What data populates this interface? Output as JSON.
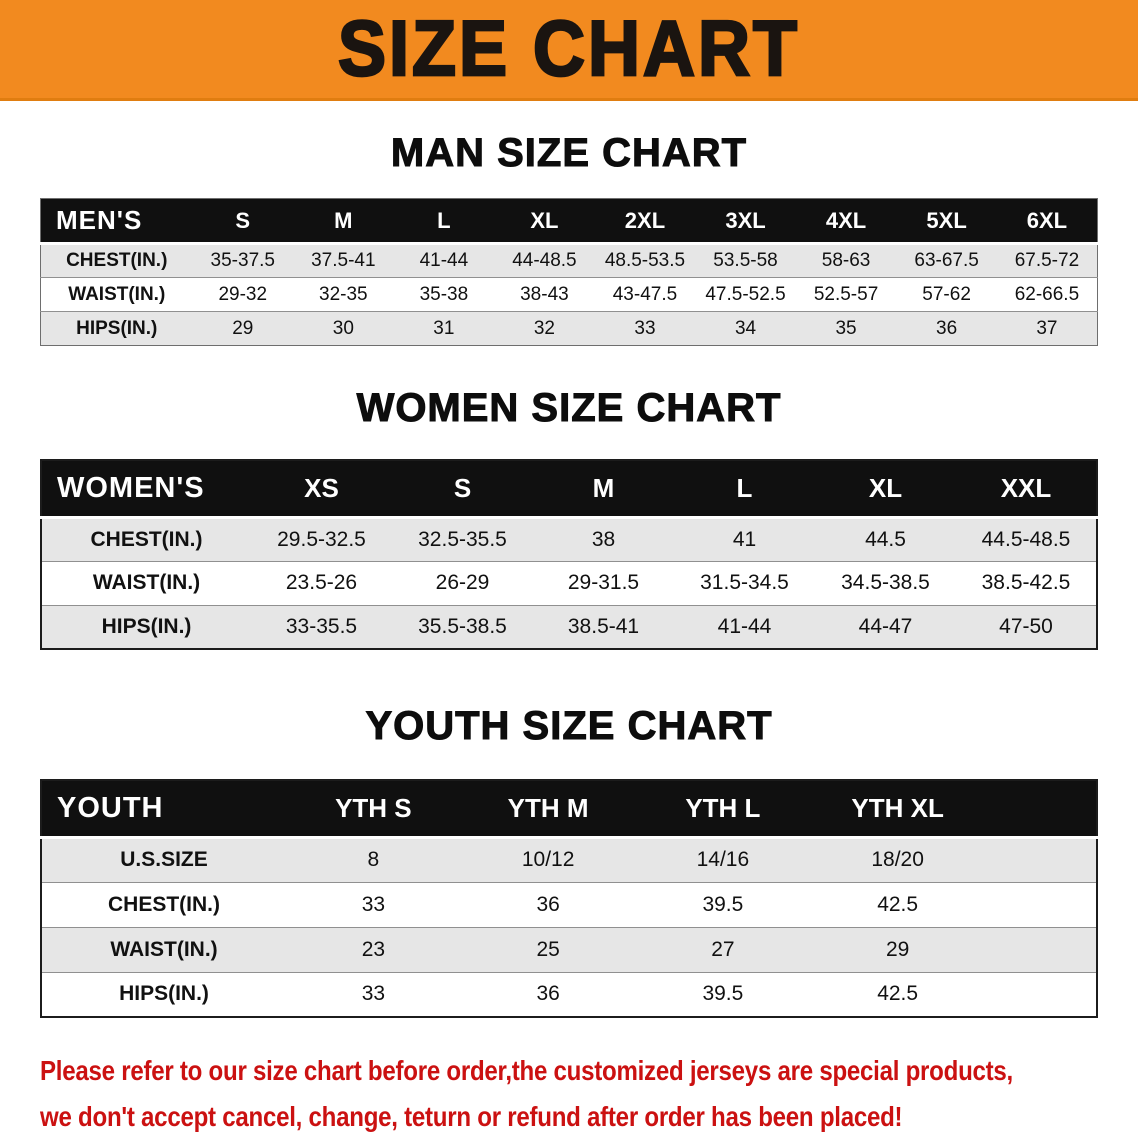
{
  "banner": {
    "title": "SIZE CHART",
    "bg_color": "#f28a1f"
  },
  "sections": [
    {
      "id": "men",
      "heading": "MAN SIZE CHART",
      "header_label": "MEN'S",
      "columns": [
        "S",
        "M",
        "L",
        "XL",
        "2XL",
        "3XL",
        "4XL",
        "5XL",
        "6XL"
      ],
      "rows": [
        {
          "label": "CHEST(IN.)",
          "values": [
            "35-37.5",
            "37.5-41",
            "41-44",
            "44-48.5",
            "48.5-53.5",
            "53.5-58",
            "58-63",
            "63-67.5",
            "67.5-72"
          ]
        },
        {
          "label": "WAIST(IN.)",
          "values": [
            "29-32",
            "32-35",
            "35-38",
            "38-43",
            "43-47.5",
            "47.5-52.5",
            "52.5-57",
            "57-62",
            "62-66.5"
          ]
        },
        {
          "label": "HIPS(IN.)",
          "values": [
            "29",
            "30",
            "31",
            "32",
            "33",
            "34",
            "35",
            "36",
            "37"
          ]
        }
      ]
    },
    {
      "id": "women",
      "heading": "WOMEN SIZE CHART",
      "header_label": "WOMEN'S",
      "columns": [
        "XS",
        "S",
        "M",
        "L",
        "XL",
        "XXL"
      ],
      "rows": [
        {
          "label": "CHEST(IN.)",
          "values": [
            "29.5-32.5",
            "32.5-35.5",
            "38",
            "41",
            "44.5",
            "44.5-48.5"
          ]
        },
        {
          "label": "WAIST(IN.)",
          "values": [
            "23.5-26",
            "26-29",
            "29-31.5",
            "31.5-34.5",
            "34.5-38.5",
            "38.5-42.5"
          ]
        },
        {
          "label": "HIPS(IN.)",
          "values": [
            "33-35.5",
            "35.5-38.5",
            "38.5-41",
            "41-44",
            "44-47",
            "47-50"
          ]
        }
      ]
    },
    {
      "id": "youth",
      "heading": "YOUTH SIZE CHART",
      "header_label": "YOUTH",
      "columns": [
        "YTH S",
        "YTH M",
        "YTH L",
        "YTH XL"
      ],
      "rows": [
        {
          "label": "U.S.SIZE",
          "values": [
            "8",
            "10/12",
            "14/16",
            "18/20"
          ]
        },
        {
          "label": "CHEST(IN.)",
          "values": [
            "33",
            "36",
            "39.5",
            "42.5"
          ]
        },
        {
          "label": "WAIST(IN.)",
          "values": [
            "23",
            "25",
            "27",
            "29"
          ]
        },
        {
          "label": "HIPS(IN.)",
          "values": [
            "33",
            "36",
            "39.5",
            "42.5"
          ]
        }
      ]
    }
  ],
  "disclaimer": {
    "line1": "Please refer to our size chart before order,the customized jerseys are special products,",
    "line2": "we don't accept cancel, change, teturn or refund after order has been placed!"
  },
  "colors": {
    "banner_orange": "#f28a1f",
    "table_header_bg": "#101010",
    "row_stripe": "#e6e6e6",
    "disclaimer_red": "#cb1111"
  }
}
